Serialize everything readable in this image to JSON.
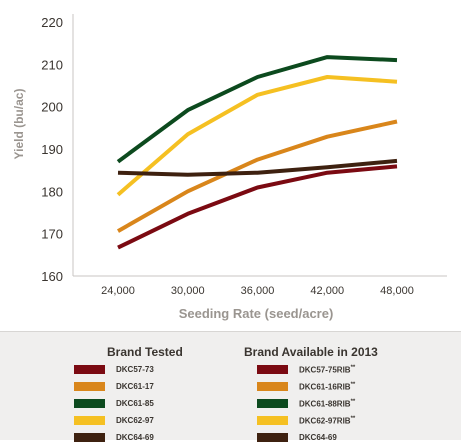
{
  "chart_data": {
    "type": "line",
    "xlabel": "Seeding Rate (seed/acre)",
    "ylabel": "Yield (bu/ac)",
    "categories": [
      "24,000",
      "30,000",
      "36,000",
      "42,000",
      "48,000"
    ],
    "ylim": [
      160,
      220
    ],
    "yticks": [
      160,
      170,
      180,
      190,
      200,
      210,
      220
    ],
    "grid": false,
    "series": [
      {
        "name": "DKC57-73",
        "color": "#7b0a12",
        "values": [
          166.7,
          174.7,
          180.9,
          184.4,
          185.9
        ]
      },
      {
        "name": "DKC61-17",
        "color": "#d9861b",
        "values": [
          170.6,
          180.0,
          187.5,
          192.9,
          196.5
        ]
      },
      {
        "name": "DKC61-85",
        "color": "#0c4a1e",
        "values": [
          187.0,
          199.2,
          207.0,
          211.7,
          211.0
        ]
      },
      {
        "name": "DKC62-97",
        "color": "#f5c022",
        "values": [
          179.2,
          193.5,
          202.8,
          207.0,
          205.9
        ]
      },
      {
        "name": "DKC64-69",
        "color": "#3e2110",
        "values": [
          184.4,
          183.9,
          184.4,
          185.7,
          187.2
        ]
      }
    ]
  },
  "legend": {
    "header_tested": "Brand Tested",
    "header_available": "Brand Available in 2013",
    "tested": [
      {
        "label": "DKC57-73",
        "color": "#7b0a12"
      },
      {
        "label": "DKC61-17",
        "color": "#d9861b"
      },
      {
        "label": "DKC61-85",
        "color": "#0c4a1e"
      },
      {
        "label": "DKC62-97",
        "color": "#f5c022"
      },
      {
        "label": "DKC64-69",
        "color": "#3e2110"
      }
    ],
    "available": [
      {
        "label": "DKC57-75RIB",
        "sup": "**",
        "color": "#7b0a12"
      },
      {
        "label": "DKC61-16RIB",
        "sup": "**",
        "color": "#d9861b"
      },
      {
        "label": "DKC61-88RIB",
        "sup": "**",
        "color": "#0c4a1e"
      },
      {
        "label": "DKC62-97RIB",
        "sup": "**",
        "color": "#f5c022"
      },
      {
        "label": "DKC64-69",
        "sup": "",
        "color": "#3e2110"
      }
    ]
  }
}
